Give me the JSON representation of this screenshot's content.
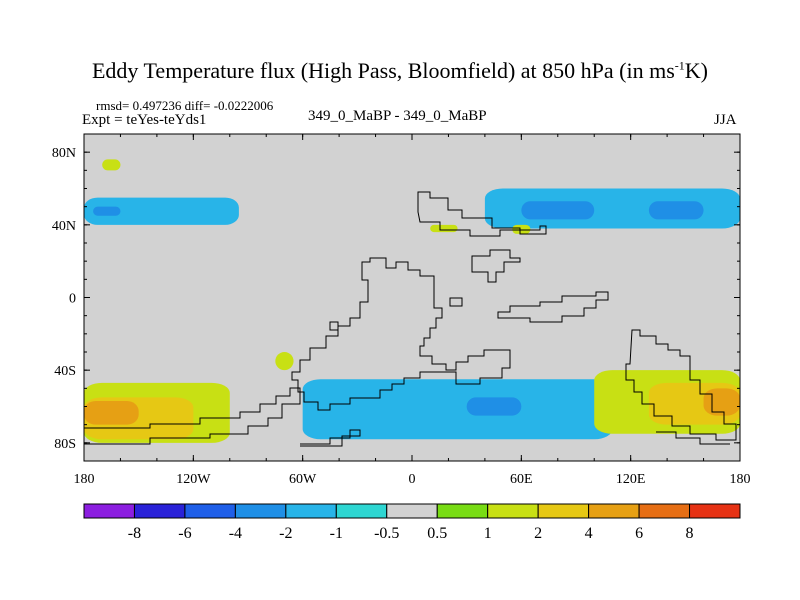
{
  "chart_data": {
    "type": "heatmap",
    "title": "Eddy Temperature flux (High Pass, Bloomfield) at 850 hPa (in ms",
    "title_superscript": "-1",
    "title_suffix": "K)",
    "stats_line": "rmsd= 0.497236 diff= -0.0222006",
    "left_label": "Expt = teYes-teYds1",
    "center_label": "349_0_MaBP - 349_0_MaBP",
    "right_label": "JJA",
    "x_range": [
      -180,
      180
    ],
    "y_range": [
      -90,
      90
    ],
    "x_ticks": [
      {
        "value": -180,
        "label": "180"
      },
      {
        "value": -120,
        "label": "120W"
      },
      {
        "value": -60,
        "label": "60W"
      },
      {
        "value": 0,
        "label": "0"
      },
      {
        "value": 60,
        "label": "60E"
      },
      {
        "value": 120,
        "label": "120E"
      },
      {
        "value": 180,
        "label": "180"
      }
    ],
    "y_ticks": [
      {
        "value": 80,
        "label": "80N"
      },
      {
        "value": 40,
        "label": "40N"
      },
      {
        "value": 0,
        "label": "0"
      },
      {
        "value": -40,
        "label": "40S"
      },
      {
        "value": -80,
        "label": "80S"
      }
    ],
    "colorbar": {
      "labels": [
        "-8",
        "-6",
        "-4",
        "-2",
        "-1",
        "-0.5",
        "0.5",
        "1",
        "2",
        "4",
        "6",
        "8"
      ],
      "colors": [
        "#8c1ee0",
        "#2a22d8",
        "#1f5fe8",
        "#1f8fe6",
        "#28b4e8",
        "#2ed6d2",
        "#d2d2d2",
        "#78dc14",
        "#c8e014",
        "#e6c814",
        "#e6a014",
        "#e66e14",
        "#e63214"
      ]
    },
    "regions": [
      {
        "name": "north-pacific-band",
        "level": "-1",
        "lon": [
          -180,
          -95
        ],
        "lat": [
          40,
          55
        ]
      },
      {
        "name": "north-pacific-core",
        "level": "-2",
        "lon": [
          -175,
          -160
        ],
        "lat": [
          45,
          50
        ]
      },
      {
        "name": "north-asia-band",
        "level": "-1",
        "lon": [
          40,
          180
        ],
        "lat": [
          38,
          60
        ]
      },
      {
        "name": "north-asia-core-1",
        "level": "-2",
        "lon": [
          60,
          100
        ],
        "lat": [
          43,
          53
        ]
      },
      {
        "name": "north-asia-core-2",
        "level": "-2",
        "lon": [
          130,
          160
        ],
        "lat": [
          43,
          53
        ]
      },
      {
        "name": "arctic-patch",
        "level": "1",
        "lon": [
          -170,
          -160
        ],
        "lat": [
          70,
          76
        ]
      },
      {
        "name": "siberia-patch",
        "level": "1",
        "lon": [
          10,
          25
        ],
        "lat": [
          36,
          40
        ]
      },
      {
        "name": "central-asia-patch",
        "level": "1",
        "lon": [
          55,
          65
        ],
        "lat": [
          35,
          40
        ]
      },
      {
        "name": "southern-ocean-band",
        "level": "-1",
        "lon": [
          -60,
          110
        ],
        "lat": [
          -78,
          -45
        ]
      },
      {
        "name": "southern-ocean-core",
        "level": "-2",
        "lon": [
          30,
          60
        ],
        "lat": [
          -65,
          -55
        ]
      },
      {
        "name": "south-pacific-warm-band",
        "level": "1",
        "lon": [
          -180,
          -100
        ],
        "lat": [
          -80,
          -47
        ]
      },
      {
        "name": "south-pacific-warm-core",
        "level": "2",
        "lon": [
          -180,
          -120
        ],
        "lat": [
          -78,
          -55
        ]
      },
      {
        "name": "south-pacific-warm-peak",
        "level": "4",
        "lon": [
          -180,
          -150
        ],
        "lat": [
          -70,
          -57
        ]
      },
      {
        "name": "south-indian-warm-band",
        "level": "1",
        "lon": [
          100,
          180
        ],
        "lat": [
          -75,
          -40
        ]
      },
      {
        "name": "south-indian-warm-core",
        "level": "2",
        "lon": [
          130,
          180
        ],
        "lat": [
          -70,
          -47
        ]
      },
      {
        "name": "south-indian-warm-peak",
        "level": "4",
        "lon": [
          160,
          180
        ],
        "lat": [
          -65,
          -50
        ]
      },
      {
        "name": "subtropical-patch",
        "level": "1",
        "lon": [
          -75,
          -65
        ],
        "lat": [
          -40,
          -30
        ]
      }
    ]
  }
}
